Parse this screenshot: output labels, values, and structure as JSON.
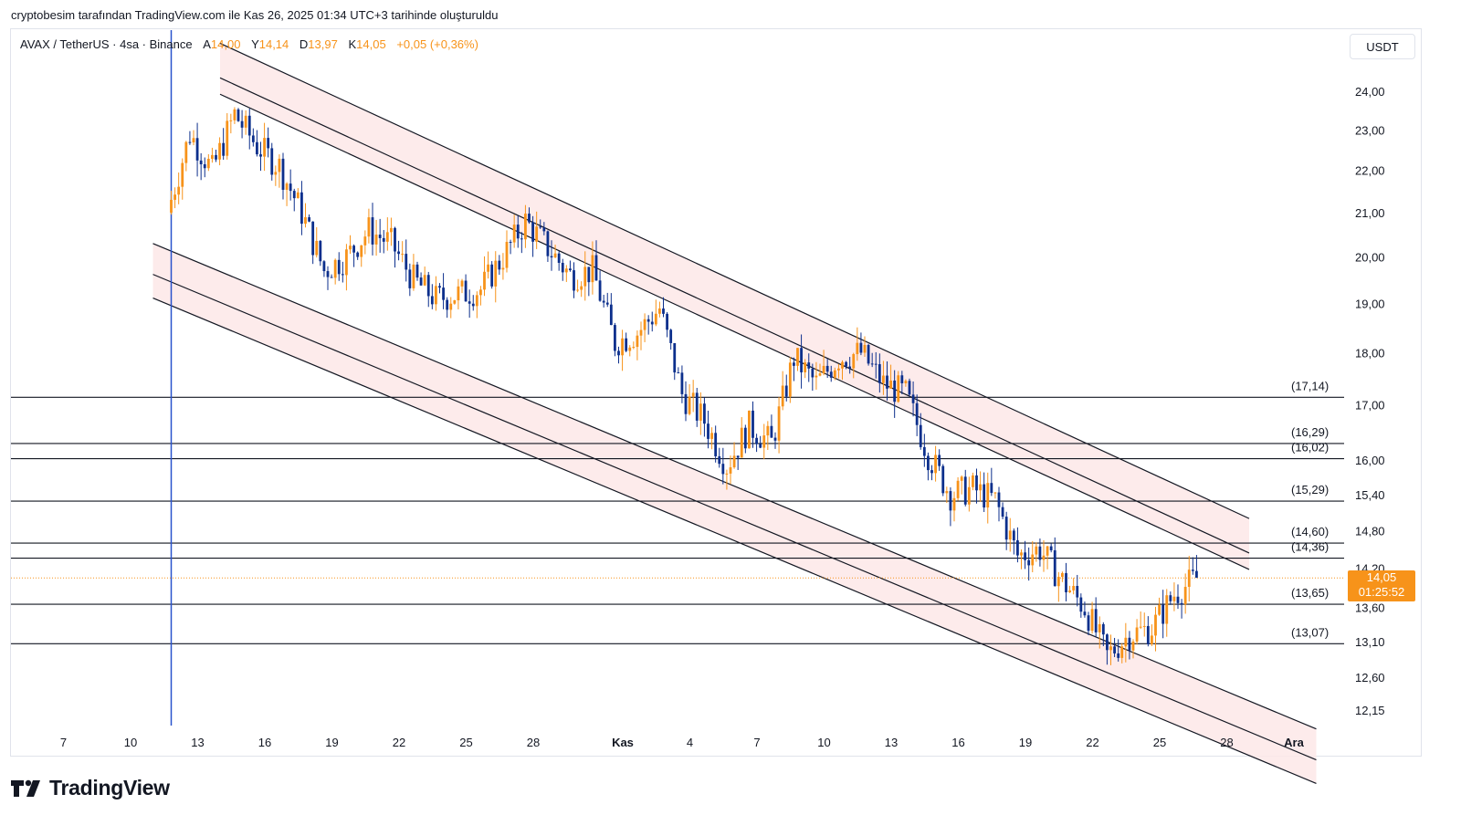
{
  "header": {
    "credit": "cryptobesim tarafından TradingView.com ile Kas 26, 2025 01:34 UTC+3 tarihinde oluşturuldu"
  },
  "symbol": {
    "name": "AVAX / TetherUS · 4sa · Binance",
    "open_label": "A",
    "open": "14,00",
    "high_label": "Y",
    "high": "14,14",
    "low_label": "D",
    "low": "13,97",
    "close_label": "K",
    "close": "14,05",
    "change": "+0,05 (+0,36%)"
  },
  "currency": "USDT",
  "last_price": {
    "value": "14,05",
    "countdown": "01:25:52"
  },
  "brand": {
    "name": "TradingView"
  },
  "colors": {
    "up": "#f7931a",
    "down": "#0c2f8c",
    "channel_fill": "#fde8e8",
    "line": "#131722",
    "vertical_marker": "#2952cc"
  },
  "chart_data": {
    "type": "candlestick",
    "y_scale": "log",
    "ylim": [
      11.9,
      26.2
    ],
    "y_ticks": [
      "24,00",
      "23,00",
      "22,00",
      "21,00",
      "20,00",
      "19,00",
      "18,00",
      "17,00",
      "16,00",
      "15,40",
      "14,80",
      "14,20",
      "13,60",
      "13,10",
      "12,60",
      "12,15"
    ],
    "x_ticks": [
      "7",
      "10",
      "13",
      "16",
      "19",
      "22",
      "25",
      "28",
      "Kas",
      "4",
      "7",
      "10",
      "13",
      "16",
      "19",
      "22",
      "25",
      "28",
      "Ara"
    ],
    "levels": [
      {
        "value": 17.14,
        "label": "(17,14)"
      },
      {
        "value": 16.29,
        "label": "(16,29)"
      },
      {
        "value": 16.02,
        "label": "(16,02)"
      },
      {
        "value": 15.29,
        "label": "(15,29)"
      },
      {
        "value": 14.6,
        "label": "(14,60)"
      },
      {
        "value": 14.36,
        "label": "(14,36)"
      },
      {
        "value": 13.65,
        "label": "(13,65)"
      },
      {
        "value": 13.07,
        "label": "(13,07)"
      }
    ],
    "channels": [
      {
        "start": [
          "Eki 14",
          25.3
        ],
        "end": [
          "Kas 29",
          15.0
        ],
        "offset_lines": [
          0,
          -0.038,
          -0.056
        ]
      },
      {
        "start": [
          "Eki 11",
          20.3
        ],
        "end": [
          "Ara 2",
          11.9
        ],
        "offset_lines": [
          0,
          -0.034,
          -0.06
        ]
      }
    ],
    "close_path": [
      {
        "t": "Eki 11",
        "c": 21.0
      },
      {
        "t": "Eki 12",
        "c": 22.9
      },
      {
        "t": "Eki 13",
        "c": 22.0
      },
      {
        "t": "Eki 14",
        "c": 23.4
      },
      {
        "t": "Eki 15",
        "c": 22.6
      },
      {
        "t": "Eki 16",
        "c": 22.1
      },
      {
        "t": "Eki 17",
        "c": 21.0
      },
      {
        "t": "Eki 18",
        "c": 19.7
      },
      {
        "t": "Eki 19",
        "c": 20.0
      },
      {
        "t": "Eki 20",
        "c": 20.6
      },
      {
        "t": "Eki 21",
        "c": 20.3
      },
      {
        "t": "Eki 22",
        "c": 19.5
      },
      {
        "t": "Eki 23",
        "c": 19.1
      },
      {
        "t": "Eki 24",
        "c": 19.2
      },
      {
        "t": "Eki 25",
        "c": 19.3
      },
      {
        "t": "Eki 26",
        "c": 20.0
      },
      {
        "t": "Eki 27",
        "c": 20.8
      },
      {
        "t": "Eki 28",
        "c": 20.2
      },
      {
        "t": "Eki 29",
        "c": 19.6
      },
      {
        "t": "Eki 30",
        "c": 19.7
      },
      {
        "t": "Eki 31",
        "c": 18.2
      },
      {
        "t": "Kas 1",
        "c": 18.4
      },
      {
        "t": "Kas 2",
        "c": 18.9
      },
      {
        "t": "Kas 3",
        "c": 17.2
      },
      {
        "t": "Kas 4",
        "c": 16.7
      },
      {
        "t": "Kas 5",
        "c": 15.9
      },
      {
        "t": "Kas 6",
        "c": 16.6
      },
      {
        "t": "Kas 7",
        "c": 16.3
      },
      {
        "t": "Kas 8",
        "c": 17.9
      },
      {
        "t": "Kas 9",
        "c": 17.4
      },
      {
        "t": "Kas 10",
        "c": 17.9
      },
      {
        "t": "Kas 11",
        "c": 18.0
      },
      {
        "t": "Kas 12",
        "c": 17.4
      },
      {
        "t": "Kas 13",
        "c": 17.2
      },
      {
        "t": "Kas 14",
        "c": 16.1
      },
      {
        "t": "Kas 15",
        "c": 15.4
      },
      {
        "t": "Kas 16",
        "c": 15.5
      },
      {
        "t": "Kas 17",
        "c": 15.3
      },
      {
        "t": "Kas 18",
        "c": 14.4
      },
      {
        "t": "Kas 19",
        "c": 14.5
      },
      {
        "t": "Kas 20",
        "c": 14.0
      },
      {
        "t": "Kas 21",
        "c": 13.6
      },
      {
        "t": "Kas 22",
        "c": 12.9
      },
      {
        "t": "Kas 23",
        "c": 13.2
      },
      {
        "t": "Kas 24",
        "c": 13.3
      },
      {
        "t": "Kas 25",
        "c": 13.8
      },
      {
        "t": "Kas 26",
        "c": 14.05
      }
    ]
  }
}
